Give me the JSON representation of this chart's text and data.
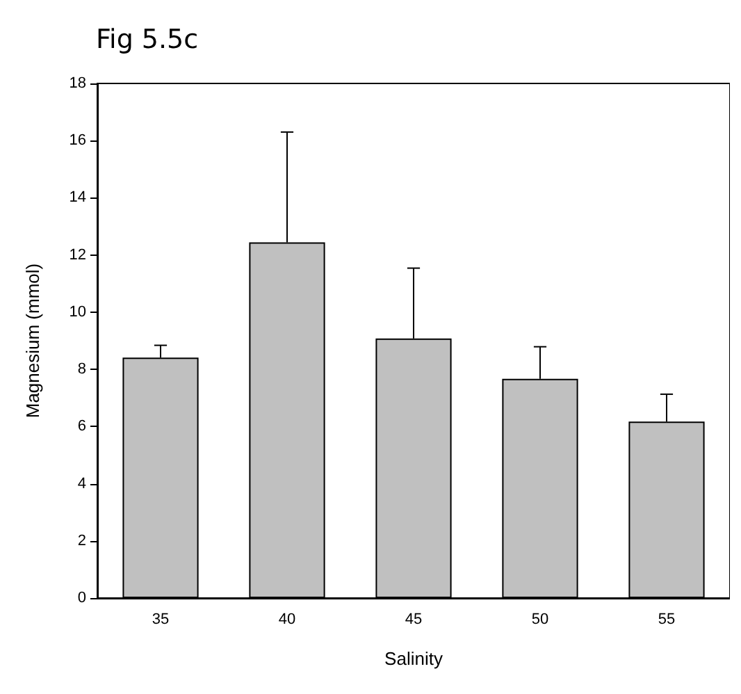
{
  "chart_data": {
    "type": "bar",
    "title": "Fig 5.5c",
    "xlabel": "Salinity",
    "ylabel": "Magnesium (mmol)",
    "categories": [
      "35",
      "40",
      "45",
      "50",
      "55"
    ],
    "values": [
      8.41,
      12.44,
      9.08,
      7.67,
      6.17
    ],
    "errors": [
      [
        8.41,
        8.84
      ],
      [
        12.44,
        16.3
      ],
      [
        9.08,
        11.54
      ],
      [
        7.67,
        8.79
      ],
      [
        6.17,
        7.13
      ]
    ],
    "color": "#c0c0c0",
    "ylim": [
      0,
      18
    ],
    "yticks": [
      0,
      2,
      4,
      6,
      8,
      10,
      12,
      14,
      16,
      18
    ],
    "grid": false
  }
}
